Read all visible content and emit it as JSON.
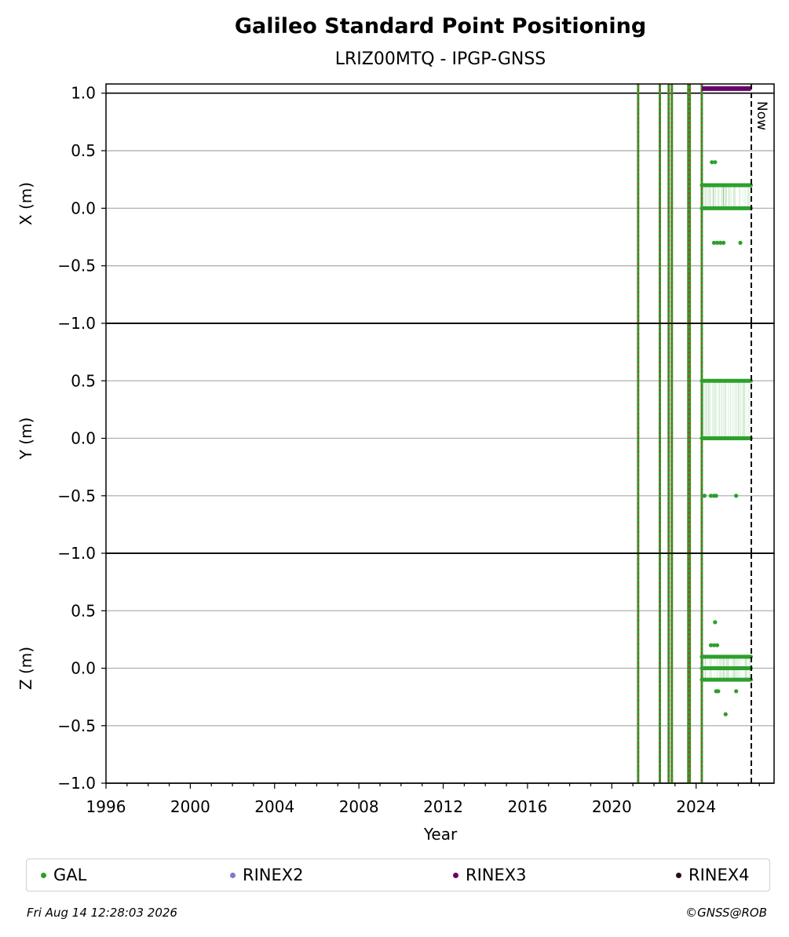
{
  "chart_data": {
    "type": "scatter",
    "title": "Galileo Standard Point Positioning",
    "subtitle": "LRIZ00MTQ - IPGP-GNSS",
    "xlabel": "Year",
    "xlim": [
      1996,
      2027.7
    ],
    "x_ticks": [
      1996,
      2000,
      2004,
      2008,
      2012,
      2016,
      2020,
      2024
    ],
    "grid": true,
    "now": {
      "label": "Now",
      "x": 2026.62
    },
    "event_lines": [
      2021.25,
      2022.28,
      2022.7,
      2022.85,
      2023.63,
      2023.7,
      2024.27
    ],
    "panels": [
      {
        "ylabel": "X (m)",
        "ylim": [
          -1.0,
          1.08
        ],
        "y_ticks": [
          -1.0,
          -0.5,
          0.0,
          0.5,
          1.0
        ],
        "tick_labels": [
          "−1.0",
          "−0.5",
          "0.0",
          "0.5",
          "1.0"
        ],
        "bands": [
          0.2,
          0.0
        ],
        "band_range": [
          2024.27,
          2026.6
        ],
        "outliers": [
          [
            2024.75,
            0.4
          ],
          [
            2024.9,
            0.4
          ],
          [
            2024.85,
            -0.3
          ],
          [
            2025.0,
            -0.3
          ],
          [
            2025.15,
            -0.3
          ],
          [
            2025.3,
            -0.3
          ],
          [
            2026.1,
            -0.3
          ]
        ],
        "rinex3_bar": {
          "y": 1.04,
          "range": [
            2024.27,
            2026.6
          ]
        }
      },
      {
        "ylabel": "Y (m)",
        "ylim": [
          -1.0,
          1.0
        ],
        "y_ticks": [
          -1.0,
          -0.5,
          0.0,
          0.5
        ],
        "tick_labels": [
          "−1.0",
          "−0.5",
          "0.0",
          "0.5"
        ],
        "bands": [
          0.5,
          0.0
        ],
        "band_range": [
          2024.27,
          2026.6
        ],
        "outliers": [
          [
            2024.4,
            -0.5
          ],
          [
            2024.7,
            -0.5
          ],
          [
            2024.85,
            -0.5
          ],
          [
            2024.95,
            -0.5
          ],
          [
            2025.9,
            -0.5
          ]
        ]
      },
      {
        "ylabel": "Z (m)",
        "ylim": [
          -1.0,
          1.0
        ],
        "y_ticks": [
          -1.0,
          -0.5,
          0.0,
          0.5
        ],
        "tick_labels": [
          "−1.0",
          "−0.5",
          "0.0",
          "0.5"
        ],
        "bands": [
          0.1,
          0.0,
          -0.1
        ],
        "band_range": [
          2024.27,
          2026.6
        ],
        "outliers": [
          [
            2024.9,
            0.4
          ],
          [
            2024.7,
            0.2
          ],
          [
            2024.85,
            0.2
          ],
          [
            2025.0,
            0.2
          ],
          [
            2024.95,
            -0.2
          ],
          [
            2025.05,
            -0.2
          ],
          [
            2025.9,
            -0.2
          ],
          [
            2025.4,
            -0.4
          ]
        ]
      }
    ],
    "legend": [
      {
        "label": "GAL",
        "color": "#2ca02c"
      },
      {
        "label": "RINEX2",
        "color": "#7b7bc8"
      },
      {
        "label": "RINEX3",
        "color": "#6a006a"
      },
      {
        "label": "RINEX4",
        "color": "#2a0a1e"
      }
    ]
  },
  "footer": {
    "timestamp": "Fri Aug 14 12:28:03 2026",
    "copyright": "©GNSS@ROB"
  }
}
